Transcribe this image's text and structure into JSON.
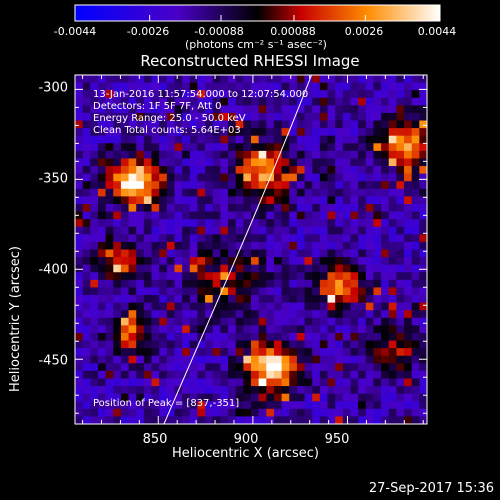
{
  "chart_data": {
    "type": "heatmap",
    "title": "Reconstructed RHESSI Image",
    "xlabel": "Heliocentric X (arcsec)",
    "ylabel": "Heliocentric Y (arcsec)",
    "xlim": [
      806,
      992
    ],
    "ylim": [
      -486,
      -292
    ],
    "x_ticks": [
      850,
      900,
      950
    ],
    "y_ticks": [
      -300,
      -350,
      -400,
      -450
    ],
    "colorbar": {
      "ticks": [
        "-0.0044",
        "-0.0026",
        "-0.00088",
        "0.00088",
        "0.0026",
        "0.0044"
      ],
      "range": [
        -0.0044,
        0.0044
      ],
      "unit_label": "(photons cm⁻² s⁻¹ asec⁻²)",
      "colors": [
        "#0000ff",
        "#4a00c8",
        "#000000",
        "#c80000",
        "#ff8c00",
        "#ffffff"
      ]
    },
    "annotations": [
      "13-Jan-2016 11:57:54.000 to 12:07:54.000",
      "Detectors: 1F 5F 7F, Att 0",
      "Energy Range: 25.0 - 50.0 keV",
      "Clean    Total counts: 5.64E+03",
      "Position of Peak = [837,-351]"
    ],
    "sources": [
      {
        "x": 837,
        "y": -351,
        "amp": 1.0,
        "sigma": 9
      },
      {
        "x": 910,
        "y": -455,
        "amp": 0.95,
        "sigma": 10
      },
      {
        "x": 905,
        "y": -345,
        "amp": 0.75,
        "sigma": 11
      },
      {
        "x": 830,
        "y": -395,
        "amp": 0.6,
        "sigma": 8
      },
      {
        "x": 835,
        "y": -435,
        "amp": 0.6,
        "sigma": 8
      },
      {
        "x": 945,
        "y": -410,
        "amp": 0.65,
        "sigma": 9
      },
      {
        "x": 885,
        "y": -405,
        "amp": 0.35,
        "sigma": 14
      },
      {
        "x": 980,
        "y": -330,
        "amp": 0.7,
        "sigma": 10
      },
      {
        "x": 975,
        "y": -445,
        "amp": 0.45,
        "sigma": 9
      }
    ],
    "limb_curve": [
      [
        853,
        -486
      ],
      [
        880,
        -420
      ],
      [
        902,
        -370
      ],
      [
        931,
        -292
      ]
    ]
  },
  "footer": {
    "timestamp": "27-Sep-2017 15:36"
  }
}
